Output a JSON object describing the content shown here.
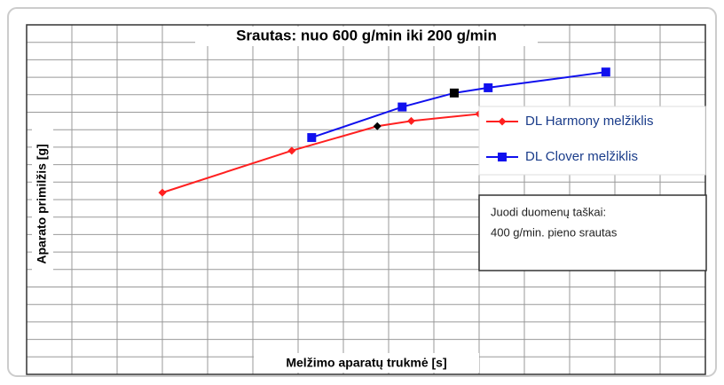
{
  "chart_data": {
    "type": "line",
    "title": "Srautas: nuo 600 g/min iki 200 g/min",
    "xlabel": "Melžimo aparatų trukmė [s]",
    "ylabel": "Aparato primilžis [g]",
    "annotation": [
      "Juodi duomenų taškai:",
      "400 g/min. pieno srautas"
    ],
    "xlim": [
      0,
      15
    ],
    "ylim": [
      0,
      20
    ],
    "xticks": [
      0,
      1,
      2,
      3,
      4,
      5,
      6,
      7,
      8,
      9,
      10,
      11,
      12,
      13,
      14,
      15
    ],
    "yticks": [
      0,
      1,
      2,
      3,
      4,
      5,
      6,
      7,
      8,
      9,
      10,
      11,
      12,
      13,
      14,
      15,
      16,
      17,
      18,
      19,
      20
    ],
    "grid": true,
    "legend": "right",
    "series": [
      {
        "name": "DL Harmony melžiklis",
        "color": "#ff2020",
        "marker": "diamond",
        "x": [
          3.0,
          5.86,
          7.75,
          8.5,
          10.0
        ],
        "values": [
          10.4,
          12.8,
          14.2,
          14.5,
          14.9
        ],
        "point_colors": [
          "#ff2020",
          "#ff2020",
          "#000000",
          "#ff2020",
          "#ff2020"
        ]
      },
      {
        "name": "DL Clover melžiklis",
        "color": "#1010ee",
        "marker": "square",
        "x": [
          6.3,
          8.3,
          9.45,
          10.2,
          12.8
        ],
        "values": [
          13.55,
          15.3,
          16.1,
          16.4,
          17.3
        ],
        "point_colors": [
          "#1010ee",
          "#1010ee",
          "#000000",
          "#1010ee",
          "#1010ee"
        ]
      }
    ]
  }
}
